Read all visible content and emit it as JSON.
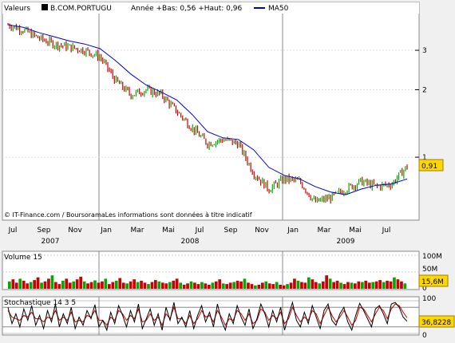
{
  "colors": {
    "background": "#f0f0f0",
    "panel": "#ffffff",
    "price_up": "#00aa00",
    "price_down": "#cc0000",
    "ma": "#0000cc",
    "volume_up": "#00aa00",
    "volume_down": "#cc0000",
    "stoch_k": "#000000",
    "stoch_d": "#cc0000",
    "badge": "#ffd700"
  },
  "price_panel": {
    "legend_valeurs": "Valeurs",
    "legend_ticker": "B.COM.PORTUGU",
    "legend_info": "Année +Bas: 0,56 +Haut: 0,96",
    "legend_ma": "MA50",
    "last_badge": "0,91",
    "copyright": "© IT-Finance.com / BoursoramaLes informations sont données à titre indicatif"
  },
  "volume_panel": {
    "title": "Volume 15",
    "ticks": [
      "100M",
      "50M",
      "0"
    ],
    "badge": "15,6M"
  },
  "stoch_panel": {
    "title": "Stochastique 14 3 5",
    "ticks": [
      "100",
      "0"
    ],
    "badge": "36,8228"
  },
  "x_axis": {
    "months": [
      "Jul",
      "Sep",
      "Nov",
      "Jan",
      "Mar",
      "Mai",
      "Jul",
      "Sep",
      "Nov",
      "Jan",
      "Mar",
      "Mai",
      "Jul"
    ],
    "years": [
      "2007",
      "2008",
      "2009"
    ]
  },
  "chart_data": [
    {
      "type": "line",
      "title": "B.COM.PORTUGU",
      "y_scale": "log",
      "yticks": [
        1,
        2,
        3
      ],
      "x": [
        "2007-06",
        "2007-07",
        "2007-08",
        "2007-09",
        "2007-10",
        "2007-11",
        "2007-12",
        "2008-01",
        "2008-02",
        "2008-03",
        "2008-04",
        "2008-05",
        "2008-06",
        "2008-07",
        "2008-08",
        "2008-09",
        "2008-10",
        "2008-11",
        "2008-12",
        "2009-01",
        "2009-02",
        "2009-03",
        "2009-04",
        "2009-05",
        "2009-06",
        "2009-07",
        "2009-08"
      ],
      "series": [
        {
          "name": "",
          "values": [
            3.9,
            3.7,
            3.4,
            3.2,
            3.1,
            3.0,
            2.8,
            2.2,
            1.9,
            2.0,
            1.9,
            1.6,
            1.35,
            1.15,
            1.2,
            1.15,
            0.85,
            0.72,
            0.8,
            0.78,
            0.63,
            0.66,
            0.72,
            0.78,
            0.74,
            0.76,
            0.91
          ]
        },
        {
          "name": "MA50",
          "values": [
            3.9,
            3.8,
            3.6,
            3.45,
            3.3,
            3.2,
            3.05,
            2.7,
            2.35,
            2.1,
            1.95,
            1.8,
            1.55,
            1.3,
            1.22,
            1.2,
            1.08,
            0.9,
            0.83,
            0.8,
            0.74,
            0.7,
            0.68,
            0.72,
            0.75,
            0.76,
            0.8
          ]
        }
      ]
    },
    {
      "type": "bar",
      "title": "Volume 15",
      "ylim": [
        0,
        100
      ],
      "unit": "M",
      "values": [
        22,
        28,
        18,
        30,
        24,
        16,
        20,
        26,
        34,
        18,
        22,
        30,
        40,
        20,
        14,
        24,
        30,
        18,
        22,
        28,
        36,
        22,
        16,
        20,
        25,
        18,
        22,
        30,
        14,
        20,
        24,
        32,
        18,
        16,
        22,
        28,
        20,
        24,
        18,
        14,
        20,
        26,
        22,
        18,
        16,
        20,
        24,
        30,
        18,
        12,
        16,
        22,
        18,
        14,
        20,
        16,
        12,
        18,
        22,
        28,
        16,
        14,
        18,
        20,
        24,
        22,
        30,
        18,
        14,
        10,
        12,
        18,
        22,
        16,
        14,
        20,
        12,
        10,
        14,
        18,
        30,
        24,
        20,
        18,
        34,
        28,
        20,
        16,
        22,
        40,
        30,
        20,
        24,
        18,
        14,
        20,
        18,
        16,
        22,
        20,
        24,
        18,
        20,
        22,
        26,
        20,
        24,
        22,
        34,
        28,
        22,
        16
      ]
    },
    {
      "type": "line",
      "title": "Stochastique 14 3 5",
      "ylim": [
        0,
        100
      ],
      "series": [
        {
          "name": "",
          "values": [
            80,
            30,
            60,
            20,
            75,
            40,
            85,
            25,
            55,
            15,
            70,
            35,
            90,
            20,
            60,
            30,
            80,
            15,
            50,
            25,
            70,
            45,
            88,
            20,
            40,
            10,
            65,
            30,
            85,
            55,
            20,
            70,
            35,
            90,
            15,
            45,
            75,
            25,
            60,
            10,
            80,
            40,
            95,
            30,
            50,
            20,
            70,
            15,
            55,
            85,
            35,
            65,
            20,
            90,
            40,
            10,
            60,
            30,
            85,
            50,
            25,
            75,
            15,
            45,
            90,
            60,
            20,
            70,
            35,
            80,
            10,
            55,
            95,
            40,
            20,
            65,
            30,
            85,
            50,
            15,
            70,
            90,
            40,
            25,
            60,
            80,
            35,
            10,
            55,
            92,
            70,
            45,
            20,
            75,
            85,
            60,
            30,
            90,
            95,
            80,
            50,
            37
          ]
        },
        {
          "name": "",
          "values": [
            70,
            50,
            45,
            40,
            55,
            50,
            65,
            45,
            45,
            35,
            50,
            45,
            70,
            40,
            50,
            40,
            65,
            35,
            40,
            35,
            55,
            50,
            70,
            40,
            40,
            25,
            50,
            40,
            70,
            60,
            40,
            55,
            45,
            75,
            35,
            40,
            60,
            40,
            50,
            25,
            60,
            45,
            80,
            45,
            45,
            30,
            55,
            30,
            45,
            70,
            50,
            55,
            35,
            70,
            50,
            25,
            45,
            40,
            70,
            60,
            40,
            60,
            30,
            40,
            75,
            65,
            40,
            55,
            45,
            65,
            30,
            45,
            80,
            55,
            35,
            50,
            40,
            70,
            60,
            30,
            55,
            80,
            55,
            35,
            50,
            70,
            50,
            25,
            40,
            80,
            75,
            55,
            35,
            60,
            80,
            70,
            45,
            75,
            90,
            85,
            65,
            48
          ]
        }
      ]
    }
  ]
}
